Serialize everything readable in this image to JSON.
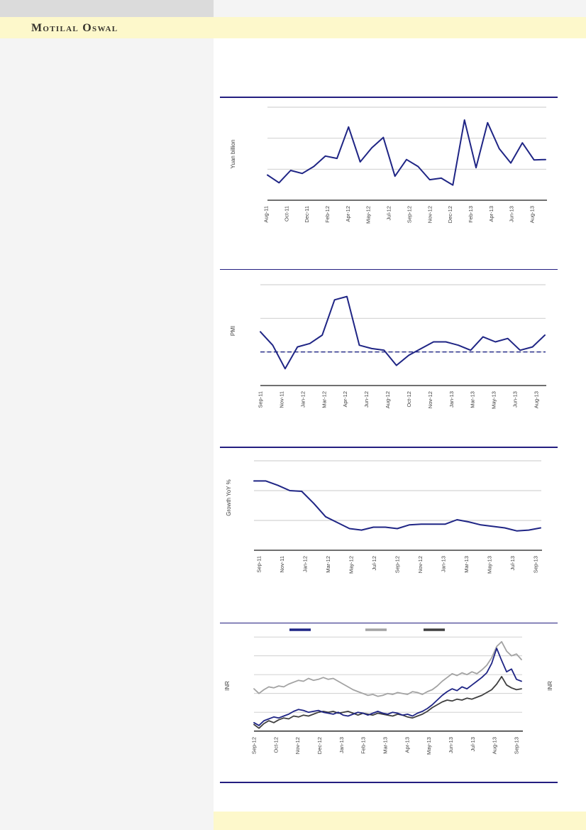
{
  "header": {
    "brand": "Motilal Oswal"
  },
  "theme": {
    "navy": "#1f2585",
    "divider_navy": "#241e80",
    "band_yellow": "#fdf8cb",
    "left_panel_gray": "#f4f4f4",
    "top_bar_gray": "#dbdbdb",
    "grid_gray": "#c9c9c9",
    "axis_black": "#1a1a1a",
    "series_grey": "#a3a3a3",
    "series_dark": "#3f3f3f",
    "tick_text": "#3f3f3f"
  },
  "footer": {
    "text": ""
  },
  "chart_data": [
    {
      "id": "new-loans",
      "type": "line",
      "title": "",
      "ylabel": "Yuan billion",
      "line_color": "#1f2585",
      "grid": true,
      "legend_position": "none",
      "y_tick_labels_visible": false,
      "ylim": [
        0,
        1200
      ],
      "gridlines": [
        400,
        800,
        1200
      ],
      "x_tick_labels": [
        "Aug-11",
        "Oct-11",
        "Dec-11",
        "Feb-12",
        "Apr-12",
        "May-12",
        "Jul-12",
        "Sep-12",
        "Nov-12",
        "Dec-12",
        "Feb-13",
        "Apr-13",
        "Jun-13",
        "Aug-13"
      ],
      "categories": [
        "Aug-11",
        "Sep-11",
        "Oct-11",
        "Nov-11",
        "Dec-11",
        "Jan-12",
        "Feb-12",
        "Mar-12",
        "Apr-12",
        "May-12",
        "Jun-12",
        "Jul-12",
        "Aug-12",
        "Sep-12",
        "Oct-12",
        "Nov-12",
        "Dec-12",
        "Jan-13",
        "Feb-13",
        "Mar-13",
        "Apr-13",
        "May-13",
        "Jun-13",
        "Jul-13",
        "Aug-13"
      ],
      "values": [
        325,
        225,
        385,
        345,
        435,
        570,
        540,
        945,
        495,
        675,
        810,
        310,
        525,
        435,
        265,
        285,
        195,
        1035,
        420,
        1000,
        665,
        480,
        740,
        520,
        525
      ]
    },
    {
      "id": "pmi",
      "type": "line",
      "title": "",
      "ylabel": "PMI",
      "line_color": "#1f2585",
      "grid": true,
      "legend_position": "none",
      "y_tick_labels_visible": false,
      "ylim": [
        48,
        54
      ],
      "gridlines": [
        50,
        52,
        54
      ],
      "ref_line": {
        "value": 50,
        "style": "dashed",
        "color": "#1f2585"
      },
      "x_tick_labels": [
        "Sep-11",
        "Nov-11",
        "Jan-12",
        "Mar-12",
        "Apr-12",
        "Jun-12",
        "Aug-12",
        "Oct-12",
        "Nov-12",
        "Jan-13",
        "Mar-13",
        "May-13",
        "Jun-13",
        "Aug-13"
      ],
      "categories": [
        "Sep-11",
        "Oct-11",
        "Nov-11",
        "Dec-11",
        "Jan-12",
        "Feb-12",
        "Mar-12",
        "Apr-12",
        "May-12",
        "Jun-12",
        "Jul-12",
        "Aug-12",
        "Sep-12",
        "Oct-12",
        "Nov-12",
        "Dec-12",
        "Jan-13",
        "Feb-13",
        "Mar-13",
        "Apr-13",
        "May-13",
        "Jun-13",
        "Jul-13",
        "Aug-13"
      ],
      "values": [
        51.2,
        50.4,
        49.0,
        50.3,
        50.5,
        51.0,
        53.1,
        53.3,
        50.4,
        50.2,
        50.1,
        49.2,
        49.8,
        50.2,
        50.6,
        50.6,
        50.4,
        50.1,
        50.9,
        50.6,
        50.8,
        50.1,
        50.3,
        51.0
      ]
    },
    {
      "id": "growth-yoy",
      "type": "line",
      "title": "",
      "ylabel": "Growth YoY %",
      "line_color": "#1f2585",
      "grid": true,
      "legend_position": "none",
      "y_tick_labels_visible": false,
      "ylim": [
        4,
        16
      ],
      "gridlines": [
        8,
        12,
        16
      ],
      "x_tick_labels": [
        "Sep-11",
        "Nov-11",
        "Jan-12",
        "Mar-12",
        "May-12",
        "Jul-12",
        "Sep-12",
        "Nov-12",
        "Jan-13",
        "Mar-13",
        "May-13",
        "Jul-13",
        "Sep-13"
      ],
      "categories": [
        "Sep-11",
        "Oct-11",
        "Nov-11",
        "Dec-11",
        "Jan-12",
        "Feb-12",
        "Mar-12",
        "Apr-12",
        "May-12",
        "Jun-12",
        "Jul-12",
        "Aug-12",
        "Sep-12",
        "Oct-12",
        "Nov-12",
        "Dec-12",
        "Jan-13",
        "Feb-13",
        "Mar-13",
        "Apr-13",
        "May-13",
        "Jun-13",
        "Jul-13",
        "Aug-13",
        "Sep-13"
      ],
      "values": [
        13.3,
        13.3,
        12.7,
        12.0,
        11.9,
        10.3,
        8.5,
        7.7,
        6.9,
        6.7,
        7.1,
        7.1,
        6.9,
        7.4,
        7.5,
        7.5,
        7.5,
        8.1,
        7.8,
        7.4,
        7.2,
        7.0,
        6.6,
        6.7,
        7.0
      ]
    },
    {
      "id": "inr",
      "type": "line",
      "title": "",
      "ylabel_left": "INR",
      "ylabel_right": "INR",
      "grid": true,
      "legend_position": "top",
      "y_tick_labels_visible": false,
      "axis_values_unlabeled": true,
      "ylim": [
        0,
        120
      ],
      "gridlines": [
        20,
        40,
        60,
        80,
        100
      ],
      "x_tick_labels": [
        "Sep-12",
        "Oct-12",
        "Nov-12",
        "Dec-12",
        "Jan-13",
        "Feb-13",
        "Mar-13",
        "Apr-13",
        "May-13",
        "Jun-13",
        "Jul-13",
        "Aug-13",
        "Sep-13"
      ],
      "legend": [
        {
          "swatch": "navy-line-swatch",
          "color": "#1f2585",
          "label": ""
        },
        {
          "swatch": "grey-line-swatch",
          "color": "#a3a3a3",
          "label": ""
        },
        {
          "swatch": "dark-line-swatch",
          "color": "#3f3f3f",
          "label": ""
        }
      ],
      "series": [
        {
          "name": "series_navy",
          "color": "#1f2585",
          "values": [
            9,
            6,
            11,
            13,
            15,
            14,
            16,
            18,
            21,
            23,
            22,
            20,
            21,
            22,
            20,
            19,
            18,
            20,
            17,
            16,
            18,
            20,
            19,
            17,
            19,
            21,
            19,
            18,
            20,
            19,
            17,
            18,
            16,
            19,
            21,
            24,
            28,
            33,
            38,
            42,
            45,
            43,
            47,
            45,
            49,
            53,
            57,
            62,
            72,
            88,
            75,
            63,
            66,
            55,
            53
          ]
        },
        {
          "name": "series_grey",
          "color": "#a3a3a3",
          "values": [
            45,
            40,
            44,
            47,
            46,
            48,
            47,
            50,
            52,
            54,
            53,
            56,
            54,
            55,
            57,
            55,
            56,
            53,
            50,
            47,
            44,
            42,
            40,
            38,
            39,
            37,
            38,
            40,
            39,
            41,
            40,
            39,
            42,
            41,
            39,
            42,
            44,
            48,
            53,
            57,
            61,
            59,
            62,
            60,
            63,
            61,
            65,
            70,
            78,
            90,
            95,
            85,
            80,
            82,
            76
          ]
        },
        {
          "name": "series_dark",
          "color": "#3f3f3f",
          "values": [
            7,
            3,
            8,
            11,
            9,
            12,
            14,
            13,
            16,
            15,
            17,
            16,
            18,
            20,
            21,
            20,
            21,
            19,
            20,
            21,
            19,
            17,
            19,
            18,
            17,
            19,
            18,
            17,
            16,
            18,
            17,
            15,
            14,
            16,
            18,
            21,
            25,
            28,
            31,
            33,
            32,
            34,
            33,
            35,
            34,
            36,
            38,
            41,
            44,
            50,
            58,
            49,
            46,
            44,
            45
          ]
        }
      ]
    }
  ]
}
